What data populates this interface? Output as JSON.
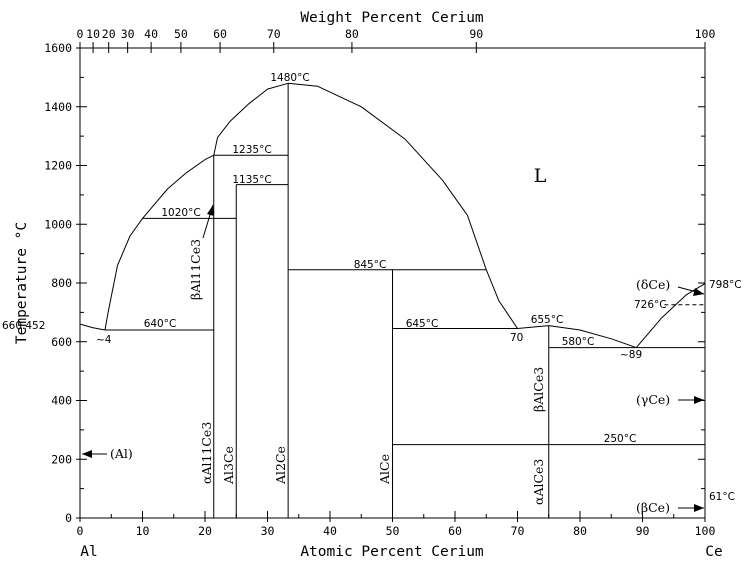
{
  "chart_data": {
    "type": "phase-diagram",
    "title_top": "Weight Percent Cerium",
    "xlabel": "Atomic Percent Cerium",
    "ylabel": "Temperature °C",
    "xlim": [
      0,
      100
    ],
    "ylim": [
      0,
      1600
    ],
    "element_left": "Al",
    "element_right": "Ce",
    "x_ticks": [
      "0",
      "10",
      "20",
      "30",
      "40",
      "50",
      "60",
      "70",
      "80",
      "90",
      "100"
    ],
    "y_ticks": [
      "0",
      "200",
      "400",
      "600",
      "800",
      "1000",
      "1200",
      "1400",
      "1600"
    ],
    "wt_ticks": [
      "0",
      "10",
      "20",
      "30",
      "40",
      "50",
      "60",
      "70",
      "80",
      "90",
      "100"
    ],
    "temperatures": {
      "al_melt": "660.452",
      "eutectic_al": "640°C",
      "peritectic_1020": "1020°C",
      "peritectic_1235": "1235°C",
      "transition_1135": "1135°C",
      "max_1480": "1480°C",
      "peritectic_845": "845°C",
      "eutectic_645": "645°C",
      "melt_655": "655°C",
      "eutectic_580": "580°C",
      "transition_250": "250°C",
      "ce_melt": "798°C",
      "ce_726": "726°C",
      "ce_61": "61°C"
    },
    "compositions": {
      "e1": "~4",
      "e2": "70",
      "e3": "~89"
    },
    "phases": {
      "liquid": "L",
      "al_solid": "(Al)",
      "beta_al11ce3": "βAl11Ce3",
      "alpha_al11ce3": "αAl11Ce3",
      "al3ce": "Al3Ce",
      "al2ce": "Al2Ce",
      "alce": "AlCe",
      "beta_alce3": "βAlCe3",
      "alpha_alce3": "αAlCe3",
      "delta_ce": "(δCe)",
      "gamma_ce": "(γCe)",
      "beta_ce": "(βCe)"
    },
    "compounds_at_pct": {
      "Al11Ce3": 21.4,
      "Al3Ce": 25,
      "Al2Ce": 33.3,
      "AlCe": 50,
      "AlCe3": 75
    },
    "invariants": [
      {
        "label": "640°C",
        "temp": 640,
        "from": 4,
        "to": 21.4
      },
      {
        "label": "1020°C",
        "temp": 1020,
        "from": 10,
        "to": 25
      },
      {
        "label": "1235°C",
        "temp": 1235,
        "from": 21.4,
        "to": 33.3
      },
      {
        "label": "1135°C",
        "temp": 1135,
        "from": 25,
        "to": 33.3
      },
      {
        "label": "845°C",
        "temp": 845,
        "from": 33.3,
        "to": 65
      },
      {
        "label": "645°C",
        "temp": 645,
        "from": 50,
        "to": 70
      },
      {
        "label": "580°C",
        "temp": 580,
        "from": 75,
        "to": 100
      },
      {
        "label": "250°C",
        "temp": 250,
        "from": 50,
        "to": 100
      }
    ],
    "liquidus_points": [
      [
        0,
        660
      ],
      [
        2,
        648
      ],
      [
        4,
        640
      ],
      [
        4.5,
        700
      ],
      [
        6,
        860
      ],
      [
        8,
        960
      ],
      [
        10,
        1020
      ],
      [
        14,
        1120
      ],
      [
        17,
        1175
      ],
      [
        20,
        1220
      ],
      [
        21.4,
        1235
      ],
      [
        22,
        1295
      ],
      [
        24,
        1350
      ],
      [
        27,
        1410
      ],
      [
        30,
        1460
      ],
      [
        33.3,
        1480
      ],
      [
        38,
        1470
      ],
      [
        45,
        1400
      ],
      [
        52,
        1290
      ],
      [
        58,
        1150
      ],
      [
        62,
        1030
      ],
      [
        65,
        845
      ],
      [
        67,
        740
      ],
      [
        70,
        645
      ],
      [
        75,
        655
      ],
      [
        80,
        640
      ],
      [
        85,
        610
      ],
      [
        89,
        580
      ],
      [
        93,
        680
      ],
      [
        97,
        760
      ],
      [
        100,
        798
      ]
    ]
  }
}
